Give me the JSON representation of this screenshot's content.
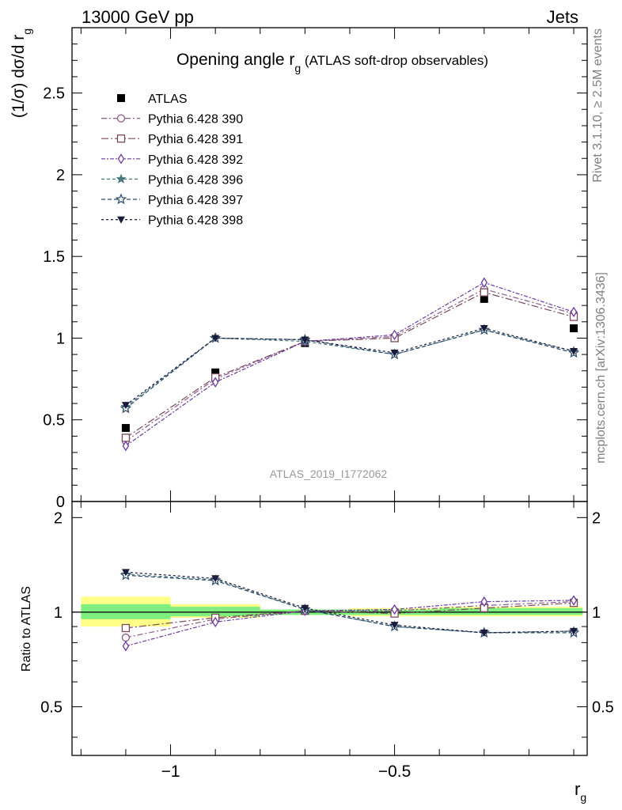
{
  "header": {
    "left": "13000 GeV pp",
    "right": "Jets"
  },
  "side_texts": {
    "rivet": "Rivet 3.1.10, ≥ 2.5M events",
    "mcplots": "mcplots.cern.ch [arXiv:1306.3436]"
  },
  "analysis_id": "ATLAS_2019_I1772062",
  "title": {
    "main": "Opening angle r",
    "sub": "g",
    "suffix": " (ATLAS soft-drop observables)"
  },
  "colors": {
    "data": "#000000",
    "s390": "#8b5a8b",
    "s391": "#7a4a5a",
    "s392": "#6a3aa0",
    "s396": "#4a7a80",
    "s397": "#2a4a6a",
    "s398": "#1a1a3a",
    "band_inner": "#7ff07f",
    "band_outer": "#ffff88"
  },
  "chart_data": [
    {
      "type": "line",
      "panel": "main",
      "ylabel": "(1/σ) dσ/d r",
      "ylabel_sub": "g",
      "ylim": [
        0,
        2.9
      ],
      "xlim": [
        -1.22,
        -0.07
      ],
      "yticks": [
        0,
        0.5,
        1,
        1.5,
        2,
        2.5
      ],
      "ytick_labels": [
        "0",
        "0.5",
        "1",
        "1.5",
        "2",
        "2.5"
      ],
      "x": [
        -1.1,
        -0.9,
        -0.7,
        -0.5,
        -0.3,
        -0.1
      ],
      "series": [
        {
          "name": "ATLAS",
          "key": "data",
          "marker": "square-filled",
          "values": [
            0.45,
            0.79,
            0.97,
            1.0,
            1.24,
            1.06
          ]
        },
        {
          "name": "Pythia 6.428 390",
          "key": "s390",
          "marker": "circle",
          "dash": "7,3,2,3",
          "values": [
            0.37,
            0.75,
            0.98,
            1.01,
            1.3,
            1.15
          ]
        },
        {
          "name": "Pythia 6.428 391",
          "key": "s391",
          "marker": "square",
          "dash": "9,3,2,3",
          "values": [
            0.39,
            0.76,
            0.98,
            1.0,
            1.28,
            1.13
          ]
        },
        {
          "name": "Pythia 6.428 392",
          "key": "s392",
          "marker": "diamond",
          "dash": "5,2,2,2",
          "values": [
            0.34,
            0.73,
            0.98,
            1.02,
            1.34,
            1.16
          ]
        },
        {
          "name": "Pythia 6.428 396",
          "key": "s396",
          "marker": "star-filled",
          "dash": "4,3",
          "values": [
            0.58,
            1.0,
            0.98,
            0.9,
            1.05,
            0.92
          ]
        },
        {
          "name": "Pythia 6.428 397",
          "key": "s397",
          "marker": "star",
          "dash": "5,3",
          "values": [
            0.57,
            1.0,
            0.99,
            0.9,
            1.05,
            0.91
          ]
        },
        {
          "name": "Pythia 6.428 398",
          "key": "s398",
          "marker": "triangle-down",
          "dash": "3,3",
          "values": [
            0.59,
            1.0,
            0.99,
            0.91,
            1.06,
            0.92
          ]
        }
      ]
    },
    {
      "type": "line",
      "panel": "ratio",
      "ylabel": "Ratio to ATLAS",
      "xlabel": "r",
      "xlabel_sub": "g",
      "ylim": [
        0.35,
        2.25
      ],
      "xlim": [
        -1.22,
        -0.07
      ],
      "yticks": [
        0.5,
        1,
        2
      ],
      "ytick_labels": [
        "0.5",
        "1",
        "2"
      ],
      "xticks": [
        -1,
        -0.5
      ],
      "xtick_labels": [
        "−1",
        "−0.5"
      ],
      "band": {
        "bins": [
          [
            -1.2,
            -1.0
          ],
          [
            -1.0,
            -0.8
          ],
          [
            -0.8,
            -0.6
          ],
          [
            -0.6,
            -0.4
          ],
          [
            -0.4,
            -0.2
          ],
          [
            -0.2,
            -0.08
          ]
        ],
        "inner": [
          [
            0.95,
            1.06
          ],
          [
            0.97,
            1.04
          ],
          [
            0.98,
            1.02
          ],
          [
            0.98,
            1.02
          ],
          [
            0.98,
            1.03
          ],
          [
            0.98,
            1.03
          ]
        ],
        "outer": [
          [
            0.9,
            1.12
          ],
          [
            0.96,
            1.06
          ],
          [
            0.98,
            1.02
          ],
          [
            0.97,
            1.03
          ],
          [
            0.97,
            1.04
          ],
          [
            0.97,
            1.04
          ]
        ]
      },
      "x": [
        -1.1,
        -0.9,
        -0.7,
        -0.5,
        -0.3,
        -0.1
      ],
      "series": [
        {
          "name": "Pythia 6.428 390",
          "key": "s390",
          "marker": "circle",
          "dash": "7,3,2,3",
          "values": [
            0.83,
            0.95,
            1.01,
            1.01,
            1.05,
            1.08
          ]
        },
        {
          "name": "Pythia 6.428 391",
          "key": "s391",
          "marker": "square",
          "dash": "9,3,2,3",
          "values": [
            0.89,
            0.96,
            1.01,
            0.99,
            1.03,
            1.07
          ]
        },
        {
          "name": "Pythia 6.428 392",
          "key": "s392",
          "marker": "diamond",
          "dash": "5,2,2,2",
          "values": [
            0.78,
            0.93,
            1.01,
            1.02,
            1.08,
            1.09
          ]
        },
        {
          "name": "Pythia 6.428 396",
          "key": "s396",
          "marker": "star-filled",
          "dash": "4,3",
          "values": [
            1.32,
            1.27,
            1.02,
            0.9,
            0.86,
            0.87
          ]
        },
        {
          "name": "Pythia 6.428 397",
          "key": "s397",
          "marker": "star",
          "dash": "5,3",
          "values": [
            1.31,
            1.26,
            1.02,
            0.9,
            0.86,
            0.86
          ]
        },
        {
          "name": "Pythia 6.428 398",
          "key": "s398",
          "marker": "triangle-down",
          "dash": "3,3",
          "values": [
            1.34,
            1.28,
            1.03,
            0.91,
            0.86,
            0.87
          ]
        }
      ]
    }
  ]
}
